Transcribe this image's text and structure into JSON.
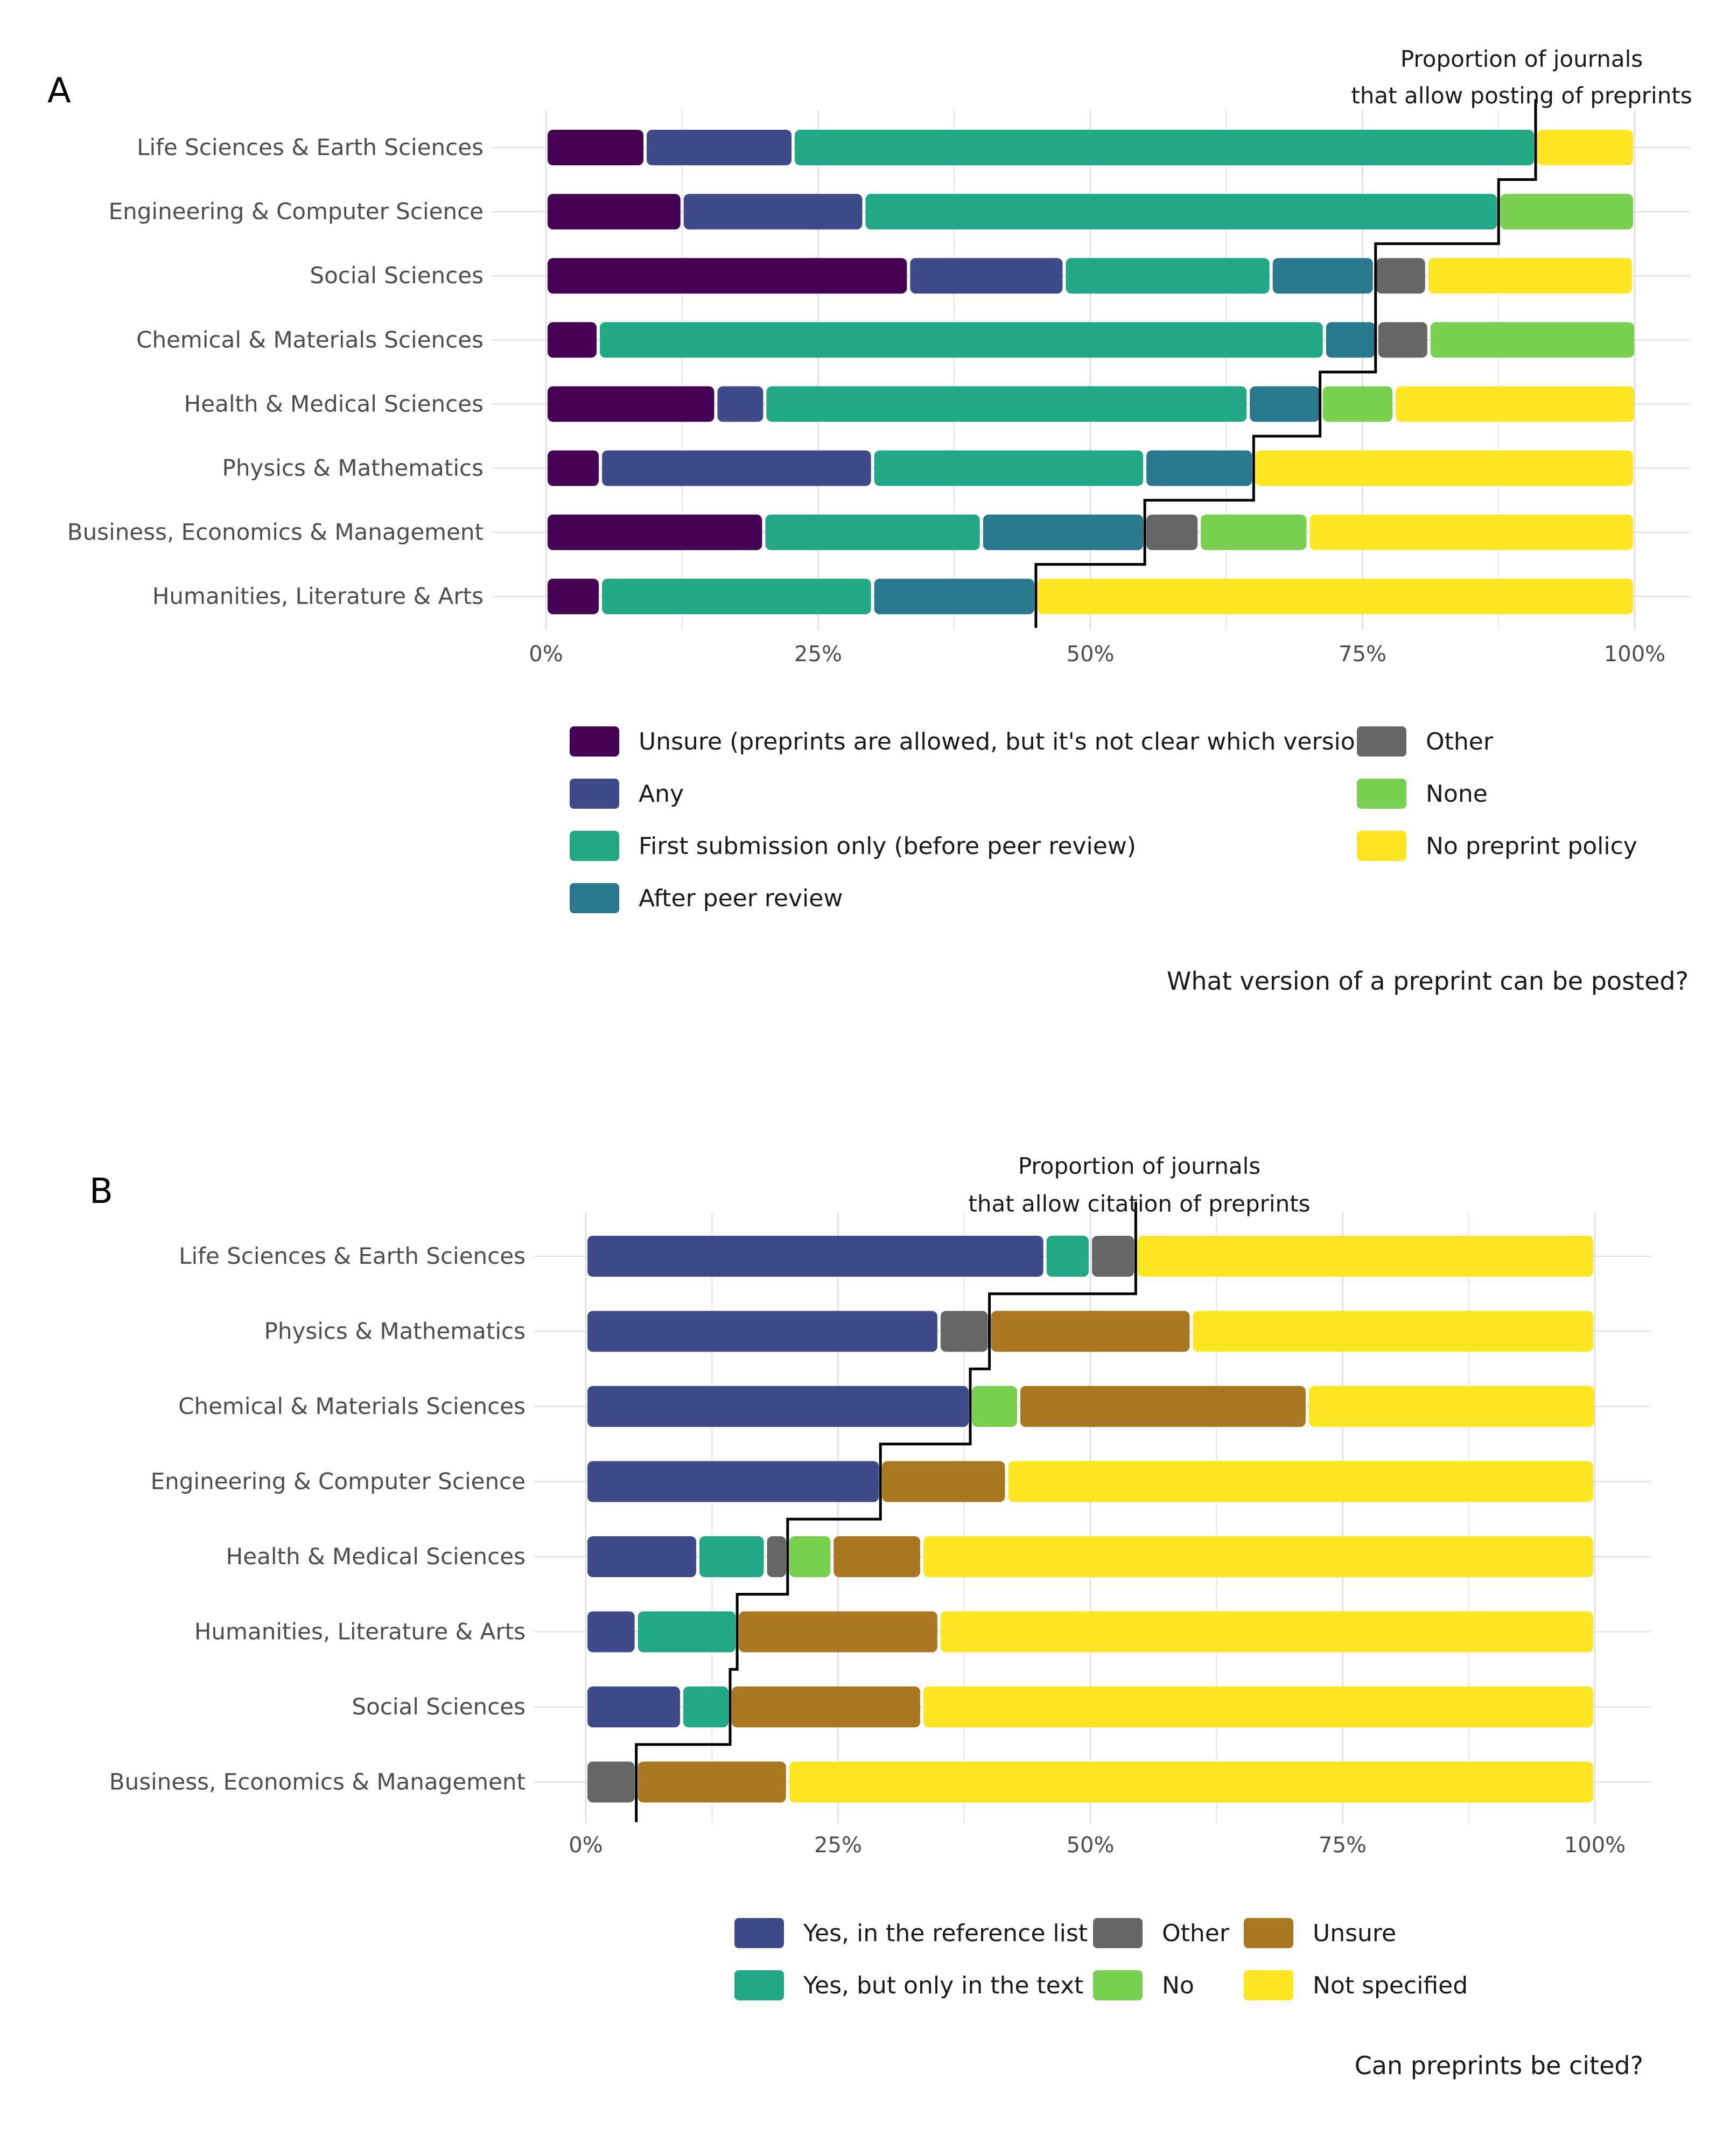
{
  "chart_data": [
    {
      "type": "bar",
      "stacked": true,
      "orientation": "horizontal",
      "panel_tag": "A",
      "caption": "What version of a preprint can be posted?",
      "annotation": [
        "Proportion of journals",
        "that allow posting of preprints"
      ],
      "xlim": [
        0,
        100
      ],
      "x_ticks": [
        "0%",
        "25%",
        "50%",
        "75%",
        "100%"
      ],
      "grid": true,
      "legend_position": "bottom",
      "categories": [
        "Life Sciences & Earth Sciences",
        "Engineering & Computer Science",
        "Social Sciences",
        "Chemical & Materials Sciences",
        "Health & Medical Sciences",
        "Physics & Mathematics",
        "Business, Economics & Management",
        "Humanities, Literature & Arts"
      ],
      "series": [
        {
          "name": "Unsure (preprints are allowed, but it's not clear which version)",
          "color": "#440154",
          "values": [
            9.1,
            12.5,
            33.3,
            4.8,
            15.6,
            5.0,
            20.0,
            5.0
          ]
        },
        {
          "name": "Any",
          "color": "#3e4a89",
          "values": [
            13.6,
            16.7,
            14.3,
            0,
            4.5,
            25.0,
            0,
            0
          ]
        },
        {
          "name": "First submission only (before peer review)",
          "color": "#22a884",
          "values": [
            68.2,
            58.3,
            19.0,
            66.7,
            44.4,
            25.0,
            20.0,
            25.0
          ]
        },
        {
          "name": "After peer review",
          "color": "#2a788e",
          "values": [
            0,
            0,
            9.5,
            4.8,
            6.7,
            10.0,
            15.0,
            15.0
          ]
        },
        {
          "name": "Other",
          "color": "#666666",
          "values": [
            0,
            0,
            4.8,
            4.8,
            0,
            0,
            5.0,
            0
          ]
        },
        {
          "name": "None",
          "color": "#7ad151",
          "values": [
            0,
            12.5,
            0,
            19.0,
            6.7,
            0,
            10.0,
            0
          ]
        },
        {
          "name": "No preprint policy",
          "color": "#fde725",
          "values": [
            9.1,
            0,
            19.0,
            0,
            22.2,
            35.0,
            30.0,
            55.0
          ]
        }
      ],
      "proportion_allowing": [
        90.9,
        87.5,
        76.2,
        76.2,
        71.1,
        65.0,
        55.0,
        45.0
      ]
    },
    {
      "type": "bar",
      "stacked": true,
      "orientation": "horizontal",
      "panel_tag": "B",
      "caption": "Can preprints be cited?",
      "annotation": [
        "Proportion of journals",
        "that allow citation of preprints"
      ],
      "xlim": [
        0,
        100
      ],
      "x_ticks": [
        "0%",
        "25%",
        "50%",
        "75%",
        "100%"
      ],
      "grid": true,
      "legend_position": "bottom",
      "categories": [
        "Life Sciences & Earth Sciences",
        "Physics & Mathematics",
        "Chemical & Materials Sciences",
        "Engineering & Computer Science",
        "Health & Medical Sciences",
        "Humanities, Literature & Arts",
        "Social Sciences",
        "Business, Economics & Management"
      ],
      "series": [
        {
          "name": "Yes, in the reference list",
          "color": "#3e4a89",
          "values": [
            45.5,
            35.0,
            38.1,
            29.2,
            11.1,
            5.0,
            9.5,
            0
          ]
        },
        {
          "name": "Yes, but only in the text",
          "color": "#22a884",
          "values": [
            4.5,
            0,
            0,
            0,
            6.7,
            10.0,
            4.8,
            0
          ]
        },
        {
          "name": "Other",
          "color": "#666666",
          "values": [
            4.5,
            5.0,
            0,
            0,
            2.2,
            0,
            0,
            5.0
          ]
        },
        {
          "name": "No",
          "color": "#7ad151",
          "values": [
            0,
            0,
            4.8,
            0,
            4.4,
            0,
            0,
            0
          ]
        },
        {
          "name": "Unsure",
          "color": "#a97820",
          "values": [
            0,
            20.0,
            28.6,
            12.5,
            8.9,
            20.0,
            19.0,
            15.0
          ]
        },
        {
          "name": "Not specified",
          "color": "#fde725",
          "values": [
            45.5,
            40.0,
            28.6,
            58.3,
            66.7,
            65.0,
            66.7,
            80.0
          ]
        }
      ],
      "proportion_allowing": [
        54.5,
        40.0,
        38.1,
        29.2,
        20.0,
        15.0,
        14.3,
        5.0
      ]
    }
  ]
}
